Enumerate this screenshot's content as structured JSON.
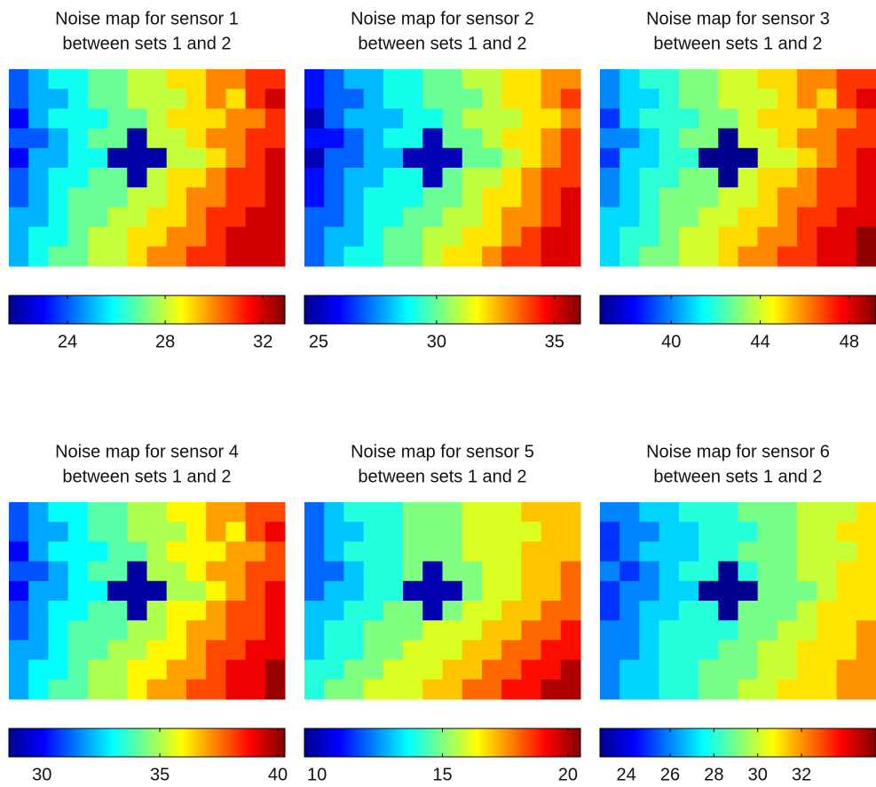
{
  "chart_data": [
    {
      "type": "heatmap",
      "title": "Noise map for sensor 1",
      "subtitle": "between sets 1 and 2",
      "colormap": "jet",
      "clim": [
        21.6,
        32.9
      ],
      "cticks": [
        24,
        28,
        32
      ],
      "z": [
        [
          24,
          25,
          26,
          26,
          27,
          27,
          28,
          28,
          29,
          29,
          30,
          30,
          31,
          31
        ],
        [
          24,
          25,
          25,
          26,
          27,
          27,
          28,
          28,
          28,
          29,
          30,
          29,
          31,
          32
        ],
        [
          23,
          25,
          26,
          26,
          26,
          27,
          27,
          28,
          29,
          29,
          29,
          30,
          30,
          31
        ],
        [
          24,
          24,
          25,
          26,
          27,
          27,
          22,
          28,
          28,
          29,
          30,
          30,
          31,
          31
        ],
        [
          23,
          25,
          25,
          26,
          26,
          22,
          22,
          22,
          28,
          28,
          29,
          30,
          31,
          32
        ],
        [
          24,
          25,
          26,
          26,
          27,
          27,
          22,
          28,
          29,
          29,
          30,
          31,
          31,
          32
        ],
        [
          24,
          25,
          26,
          27,
          27,
          27,
          28,
          28,
          29,
          30,
          30,
          31,
          31,
          32
        ],
        [
          25,
          25,
          26,
          27,
          27,
          28,
          28,
          29,
          29,
          30,
          31,
          31,
          32,
          32
        ],
        [
          25,
          26,
          26,
          27,
          28,
          28,
          29,
          29,
          30,
          30,
          31,
          32,
          32,
          32
        ],
        [
          25,
          26,
          27,
          27,
          28,
          28,
          29,
          30,
          30,
          31,
          31,
          32,
          32,
          32
        ]
      ]
    },
    {
      "type": "heatmap",
      "title": "Noise map for sensor 2",
      "subtitle": "between sets 1 and 2",
      "colormap": "jet",
      "clim": [
        24.4,
        36.1
      ],
      "cticks": [
        25,
        30,
        35
      ],
      "z": [
        [
          26,
          27,
          28,
          28,
          29,
          29,
          30,
          30,
          31,
          31,
          32,
          32,
          33,
          33
        ],
        [
          26,
          27,
          27,
          28,
          29,
          29,
          30,
          30,
          30,
          31,
          32,
          32,
          33,
          34
        ],
        [
          25,
          27,
          28,
          28,
          28,
          29,
          29,
          30,
          31,
          31,
          31,
          32,
          32,
          33
        ],
        [
          26,
          26,
          27,
          28,
          29,
          29,
          25,
          30,
          30,
          31,
          32,
          32,
          33,
          34
        ],
        [
          25,
          27,
          27,
          28,
          28,
          25,
          25,
          25,
          30,
          30,
          31,
          32,
          33,
          34
        ],
        [
          26,
          27,
          28,
          28,
          29,
          29,
          25,
          30,
          31,
          31,
          32,
          33,
          34,
          34
        ],
        [
          26,
          27,
          28,
          29,
          29,
          29,
          30,
          30,
          31,
          32,
          32,
          33,
          34,
          35
        ],
        [
          27,
          27,
          28,
          29,
          29,
          30,
          30,
          31,
          31,
          32,
          33,
          33,
          34,
          35
        ],
        [
          27,
          28,
          28,
          29,
          30,
          30,
          31,
          31,
          32,
          32,
          33,
          34,
          35,
          35
        ],
        [
          27,
          28,
          29,
          29,
          30,
          30,
          31,
          32,
          32,
          33,
          34,
          34,
          35,
          35
        ]
      ]
    },
    {
      "type": "heatmap",
      "title": "Noise map for sensor 3",
      "subtitle": "between sets 1 and 2",
      "colormap": "jet",
      "clim": [
        36.8,
        49.2
      ],
      "cticks": [
        40,
        44,
        48
      ],
      "z": [
        [
          40,
          41,
          42,
          42,
          43,
          43,
          44,
          44,
          45,
          45,
          46,
          46,
          47,
          47
        ],
        [
          40,
          41,
          41,
          42,
          43,
          43,
          44,
          44,
          44,
          45,
          46,
          45,
          47,
          48
        ],
        [
          39,
          41,
          42,
          42,
          42,
          43,
          43,
          44,
          45,
          45,
          45,
          46,
          46,
          47
        ],
        [
          40,
          40,
          41,
          42,
          43,
          43,
          37,
          44,
          44,
          45,
          46,
          46,
          47,
          47
        ],
        [
          39,
          41,
          41,
          42,
          42,
          37,
          37,
          37,
          44,
          44,
          45,
          46,
          47,
          48
        ],
        [
          40,
          41,
          42,
          42,
          43,
          43,
          37,
          44,
          45,
          45,
          46,
          47,
          47,
          48
        ],
        [
          40,
          41,
          42,
          43,
          43,
          43,
          44,
          44,
          45,
          46,
          46,
          47,
          47,
          48
        ],
        [
          41,
          41,
          42,
          43,
          43,
          44,
          44,
          45,
          45,
          46,
          47,
          47,
          48,
          48
        ],
        [
          41,
          42,
          42,
          43,
          44,
          44,
          45,
          45,
          46,
          46,
          47,
          48,
          48,
          49
        ],
        [
          41,
          42,
          43,
          43,
          44,
          44,
          45,
          46,
          46,
          47,
          47,
          48,
          48,
          49
        ]
      ]
    },
    {
      "type": "heatmap",
      "title": "Noise map for sensor 4",
      "subtitle": "between sets 1 and 2",
      "colormap": "jet",
      "clim": [
        28.6,
        40.3
      ],
      "cticks": [
        30,
        35,
        40
      ],
      "z": [
        [
          31,
          32,
          33,
          33,
          34,
          34,
          35,
          35,
          36,
          36,
          37,
          37,
          38,
          38
        ],
        [
          31,
          32,
          32,
          33,
          34,
          34,
          35,
          35,
          35,
          36,
          37,
          36,
          38,
          39
        ],
        [
          30,
          32,
          33,
          33,
          33,
          34,
          34,
          35,
          36,
          36,
          36,
          37,
          37,
          38
        ],
        [
          31,
          31,
          32,
          33,
          34,
          34,
          29,
          35,
          35,
          36,
          37,
          37,
          38,
          38
        ],
        [
          30,
          32,
          32,
          33,
          33,
          29,
          29,
          29,
          35,
          35,
          36,
          37,
          38,
          39
        ],
        [
          31,
          32,
          33,
          33,
          34,
          34,
          29,
          35,
          36,
          36,
          37,
          38,
          38,
          39
        ],
        [
          31,
          32,
          33,
          34,
          34,
          34,
          35,
          35,
          36,
          37,
          37,
          38,
          38,
          39
        ],
        [
          32,
          32,
          33,
          34,
          34,
          35,
          35,
          36,
          36,
          37,
          38,
          38,
          39,
          39
        ],
        [
          32,
          33,
          33,
          34,
          35,
          35,
          36,
          36,
          37,
          37,
          38,
          39,
          39,
          40
        ],
        [
          32,
          33,
          34,
          34,
          35,
          35,
          36,
          37,
          37,
          38,
          38,
          39,
          39,
          40
        ]
      ]
    },
    {
      "type": "heatmap",
      "title": "Noise map for sensor 5",
      "subtitle": "between sets 1 and 2",
      "colormap": "jet",
      "clim": [
        9.5,
        20.5
      ],
      "cticks": [
        10,
        15,
        20
      ],
      "z": [
        [
          12,
          13,
          14,
          14,
          14,
          15,
          15,
          15,
          16,
          16,
          16,
          17,
          17,
          17
        ],
        [
          12,
          13,
          13,
          14,
          14,
          15,
          15,
          15,
          16,
          16,
          16,
          16,
          17,
          17
        ],
        [
          12,
          13,
          14,
          14,
          14,
          15,
          15,
          15,
          16,
          16,
          16,
          17,
          17,
          17
        ],
        [
          12,
          12,
          13,
          14,
          14,
          15,
          10,
          15,
          15,
          16,
          16,
          17,
          17,
          18
        ],
        [
          12,
          13,
          13,
          14,
          14,
          10,
          10,
          10,
          15,
          16,
          16,
          17,
          17,
          18
        ],
        [
          13,
          13,
          14,
          14,
          15,
          15,
          10,
          15,
          16,
          16,
          17,
          17,
          18,
          18
        ],
        [
          13,
          14,
          14,
          15,
          15,
          15,
          16,
          16,
          16,
          17,
          17,
          18,
          18,
          19
        ],
        [
          13,
          14,
          14,
          15,
          15,
          16,
          16,
          16,
          17,
          17,
          18,
          18,
          19,
          19
        ],
        [
          14,
          14,
          15,
          15,
          16,
          16,
          16,
          17,
          17,
          18,
          18,
          19,
          19,
          20
        ],
        [
          14,
          15,
          15,
          16,
          16,
          16,
          17,
          17,
          18,
          18,
          19,
          19,
          20,
          20
        ]
      ]
    },
    {
      "type": "heatmap",
      "title": "Noise map for sensor 6",
      "subtitle": "between sets 1 and 2",
      "colormap": "jet",
      "clim": [
        22.8,
        35.4
      ],
      "cticks": [
        24,
        26,
        28,
        30,
        32
      ],
      "z": [
        [
          26,
          26,
          27,
          27,
          28,
          28,
          28,
          29,
          29,
          29,
          30,
          30,
          30,
          31
        ],
        [
          25,
          26,
          26,
          27,
          27,
          28,
          28,
          28,
          29,
          29,
          30,
          30,
          31,
          31
        ],
        [
          25,
          26,
          27,
          27,
          27,
          28,
          28,
          29,
          29,
          29,
          30,
          30,
          30,
          31
        ],
        [
          26,
          25,
          26,
          27,
          28,
          28,
          23,
          28,
          29,
          29,
          30,
          30,
          31,
          31
        ],
        [
          25,
          26,
          26,
          27,
          27,
          23,
          23,
          23,
          29,
          29,
          29,
          30,
          31,
          31
        ],
        [
          25,
          26,
          27,
          27,
          28,
          28,
          23,
          29,
          29,
          29,
          30,
          31,
          31,
          31
        ],
        [
          26,
          26,
          27,
          28,
          28,
          28,
          28,
          29,
          29,
          30,
          30,
          31,
          31,
          32
        ],
        [
          26,
          26,
          27,
          28,
          28,
          28,
          29,
          29,
          30,
          30,
          31,
          31,
          31,
          32
        ],
        [
          26,
          27,
          27,
          28,
          28,
          29,
          29,
          29,
          30,
          30,
          31,
          31,
          32,
          32
        ],
        [
          26,
          27,
          27,
          28,
          28,
          29,
          29,
          30,
          30,
          31,
          31,
          31,
          32,
          32
        ]
      ]
    }
  ]
}
